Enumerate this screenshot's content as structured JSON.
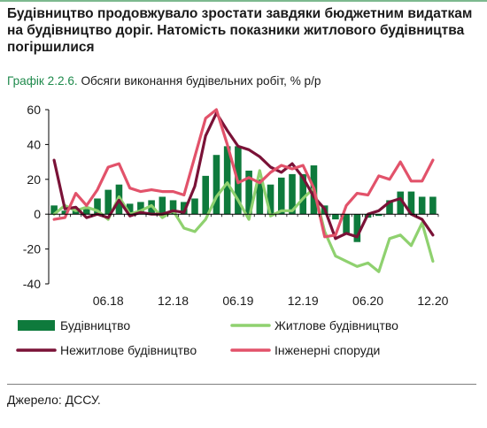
{
  "headline": "Будівництво продовжувало зростати завдяки бюджетним видаткам на будівництво доріг. Натомість показники житлового будівництва погіршилися",
  "figure": {
    "prefix": "Графік 2.2.6.",
    "title": "Обсяги виконання будівельних робіт, % р/р"
  },
  "source": "Джерело: ДССУ.",
  "colors": {
    "bars": "#0e7a3c",
    "housing": "#8fd16f",
    "nonresidential": "#7a1237",
    "engineering": "#e2526a",
    "axis": "#000000"
  },
  "chart_data": {
    "type": "bar",
    "x": [
      "01.18",
      "02.18",
      "03.18",
      "04.18",
      "05.18",
      "06.18",
      "07.18",
      "08.18",
      "09.18",
      "10.18",
      "11.18",
      "12.18",
      "01.19",
      "02.19",
      "03.19",
      "04.19",
      "05.19",
      "06.19",
      "07.19",
      "08.19",
      "09.19",
      "10.19",
      "11.19",
      "12.19",
      "01.20",
      "02.20",
      "03.20",
      "04.20",
      "05.20",
      "06.20",
      "07.20",
      "08.20",
      "09.20",
      "10.20",
      "11.20",
      "12.20"
    ],
    "tick_labels": [
      "06.18",
      "12.18",
      "06.19",
      "12.19",
      "06.20",
      "12.20"
    ],
    "ylim": [
      -40,
      60
    ],
    "yticks": [
      -40,
      -20,
      0,
      20,
      40,
      60
    ],
    "grid": false,
    "legend_position": "bottom",
    "series": [
      {
        "name": "Будівництво",
        "kind": "bar",
        "values": [
          5,
          2,
          3,
          3,
          9,
          14,
          17,
          6,
          7,
          8,
          10,
          8,
          7,
          9,
          22,
          34,
          39,
          39,
          25,
          20,
          17,
          21,
          23,
          23,
          28,
          5,
          -3,
          -11,
          -16,
          -2,
          -1,
          8,
          13,
          13,
          10,
          10
        ]
      },
      {
        "name": "Житлове будівництво",
        "kind": "line",
        "values": [
          0,
          5,
          2,
          4,
          2,
          -3,
          10,
          0,
          2,
          5,
          -2,
          2,
          -8,
          -10,
          -3,
          10,
          18,
          8,
          -3,
          25,
          -1,
          2,
          2,
          9,
          15,
          -10,
          -24,
          -27,
          -30,
          -28,
          -33,
          -14,
          -12,
          -18,
          -5,
          -27
        ]
      },
      {
        "name": "Нежитлове будівництво",
        "kind": "line",
        "values": [
          31,
          3,
          4,
          -2,
          0,
          -2,
          8,
          -1,
          1,
          0,
          0,
          2,
          1,
          16,
          45,
          58,
          48,
          39,
          37,
          33,
          27,
          24,
          29,
          21,
          10,
          3,
          -14,
          -11,
          -13,
          0,
          2,
          7,
          9,
          0,
          -3,
          -12
        ]
      },
      {
        "name": "Інженерні споруди",
        "kind": "line",
        "values": [
          -3,
          -2,
          12,
          5,
          14,
          27,
          29,
          15,
          13,
          14,
          13,
          13,
          11,
          33,
          55,
          60,
          40,
          18,
          21,
          18,
          24,
          28,
          26,
          28,
          15,
          -13,
          -12,
          5,
          12,
          11,
          22,
          20,
          30,
          19,
          19,
          31
        ]
      }
    ]
  }
}
